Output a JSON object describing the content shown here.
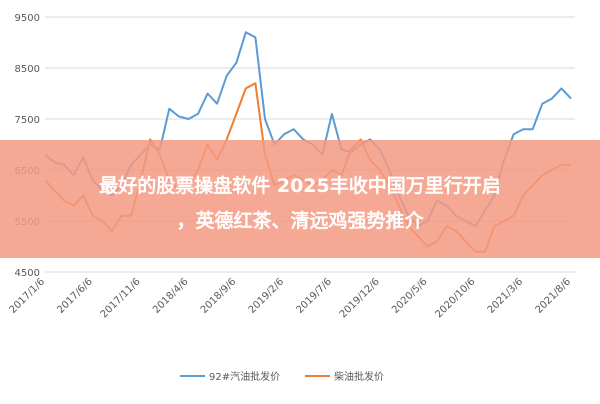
{
  "chart_data": {
    "type": "line",
    "categories": [
      "2017/1/6",
      null,
      null,
      null,
      null,
      "2017/6/6",
      null,
      null,
      null,
      null,
      "2017/11/6",
      null,
      null,
      null,
      null,
      "2018/4/6",
      null,
      null,
      null,
      null,
      "2018/9/6",
      null,
      null,
      null,
      null,
      "2019/2/6",
      null,
      null,
      null,
      null,
      "2019/7/6",
      null,
      null,
      null,
      null,
      "2019/12/6",
      null,
      null,
      null,
      null,
      "2020/5/6",
      null,
      null,
      null,
      null,
      "2020/10/6",
      null,
      null,
      null,
      null,
      "2021/3/6",
      null,
      null,
      null,
      null,
      "2021/8/6"
    ],
    "series": [
      {
        "name": "92#汽油批发价",
        "color": "#5b9bd5",
        "values": [
          6800,
          6650,
          6600,
          6400,
          6750,
          6300,
          6100,
          6000,
          6200,
          6600,
          6800,
          7000,
          6900,
          7700,
          7550,
          7500,
          7600,
          8000,
          7800,
          8350,
          8600,
          9200,
          9100,
          7500,
          7000,
          7200,
          7300,
          7100,
          7000,
          6800,
          7600,
          6900,
          6850,
          7000,
          7100,
          6900,
          6500,
          6000,
          5600,
          5400,
          5500,
          5900,
          5800,
          5600,
          5500,
          5400,
          5700,
          6000,
          6700,
          7200,
          7300,
          7300,
          7800,
          7900,
          8100,
          7900
        ]
      },
      {
        "name": "柴油批发价",
        "color": "#ed7d31",
        "values": [
          6300,
          6100,
          5900,
          5800,
          6000,
          5600,
          5500,
          5300,
          5600,
          5600,
          6300,
          7100,
          6800,
          6300,
          6100,
          6200,
          6500,
          7000,
          6700,
          7100,
          7600,
          8100,
          8200,
          6800,
          6200,
          6300,
          6400,
          6300,
          6200,
          6300,
          6500,
          6400,
          6900,
          7100,
          6700,
          6500,
          6200,
          5800,
          5400,
          5200,
          5000,
          5100,
          5400,
          5300,
          5100,
          4900,
          4900,
          5400,
          5500,
          5600,
          6000,
          6200,
          6400,
          6500,
          6600,
          6600
        ]
      }
    ],
    "ylim": [
      4500,
      9500
    ],
    "yticks": [
      4500,
      5500,
      6500,
      7500,
      8500,
      9500
    ],
    "grid": true,
    "legend": "bottom",
    "banner": [
      "最好的股票操盘软件 2025丰收中国万里行开启",
      "，英德红茶、清远鸡强势推介"
    ]
  }
}
